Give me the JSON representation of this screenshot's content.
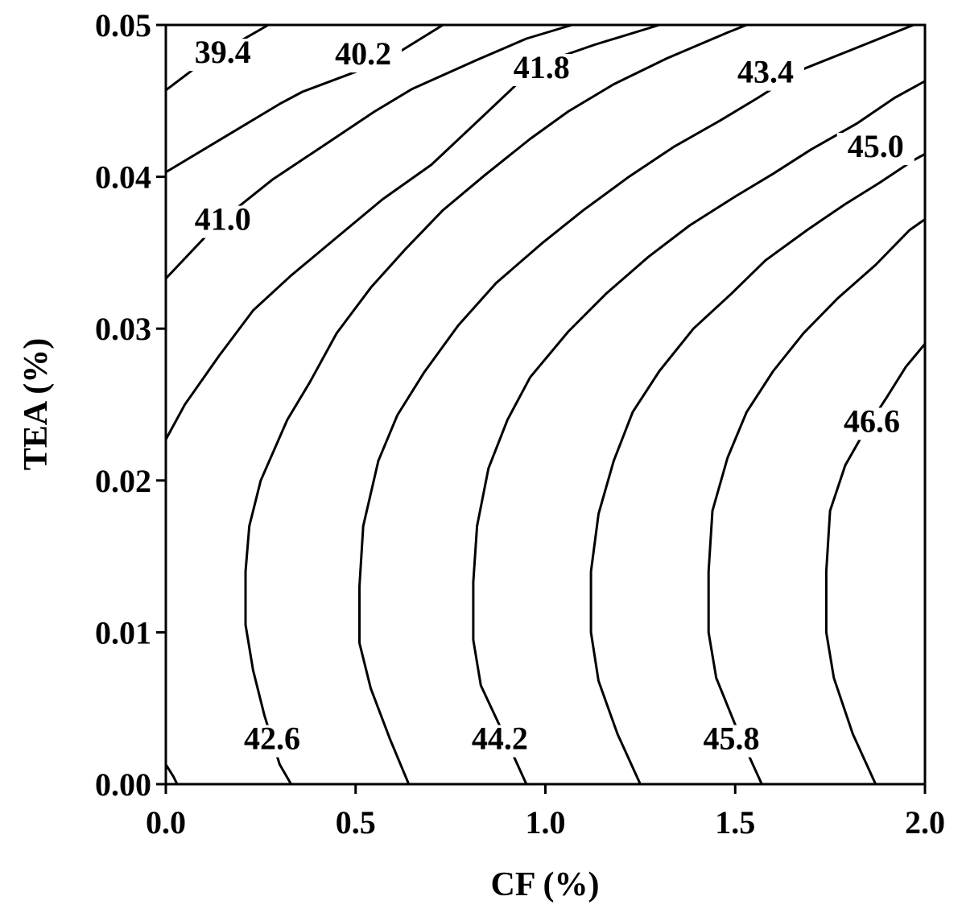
{
  "chart_data": {
    "type": "contour",
    "xlabel": "CF (%)",
    "ylabel": "TEA (%)",
    "xlim": [
      0.0,
      2.0
    ],
    "ylim": [
      0.0,
      0.05
    ],
    "xticks": [
      "0.0",
      "0.5",
      "1.0",
      "1.5",
      "2.0"
    ],
    "yticks": [
      "0.00",
      "0.01",
      "0.02",
      "0.03",
      "0.04",
      "0.05"
    ],
    "contours": [
      {
        "level": "39.4",
        "label_at": [
          0.15,
          0.0475
        ],
        "points": [
          [
            0.0,
            0.0457
          ],
          [
            0.1,
            0.0476
          ],
          [
            0.2,
            0.049
          ],
          [
            0.27,
            0.05
          ]
        ]
      },
      {
        "level": "40.2",
        "label_at": [
          0.52,
          0.0474
        ],
        "points": [
          [
            0.0,
            0.0403
          ],
          [
            0.16,
            0.0427
          ],
          [
            0.3,
            0.0448
          ],
          [
            0.36,
            0.0456
          ],
          [
            0.52,
            0.0471
          ],
          [
            0.62,
            0.0483
          ],
          [
            0.73,
            0.05
          ]
        ]
      },
      {
        "level": "41.0",
        "label_at": [
          0.15,
          0.0365
        ],
        "points": [
          [
            0.0,
            0.0333
          ],
          [
            0.14,
            0.037
          ],
          [
            0.28,
            0.0398
          ],
          [
            0.4,
            0.0418
          ],
          [
            0.55,
            0.0443
          ],
          [
            0.65,
            0.0458
          ],
          [
            0.82,
            0.0477
          ],
          [
            0.95,
            0.0491
          ],
          [
            1.07,
            0.05
          ]
        ]
      },
      {
        "level": "41.8",
        "label_at": [
          0.99,
          0.0465
        ],
        "points": [
          [
            0.0,
            0.0227
          ],
          [
            0.05,
            0.025
          ],
          [
            0.14,
            0.0282
          ],
          [
            0.23,
            0.0312
          ],
          [
            0.33,
            0.0335
          ],
          [
            0.45,
            0.036
          ],
          [
            0.57,
            0.0385
          ],
          [
            0.7,
            0.0408
          ],
          [
            0.84,
            0.0441
          ],
          [
            0.98,
            0.0474
          ],
          [
            1.13,
            0.0487
          ],
          [
            1.3,
            0.05
          ]
        ]
      },
      {
        "level": "42.6",
        "label_at": [
          0.28,
          0.0023
        ],
        "points": [
          [
            0.0,
            0.0013
          ],
          [
            0.02,
            0.0005
          ],
          [
            0.03,
            0.0
          ],
          [
            0.03,
            0.0
          ],
          [
            0.33,
            0.0
          ],
          [
            0.3,
            0.0013
          ],
          [
            0.26,
            0.0045
          ],
          [
            0.23,
            0.0075
          ],
          [
            0.21,
            0.0105
          ],
          [
            0.21,
            0.014
          ],
          [
            0.22,
            0.017
          ],
          [
            0.25,
            0.02
          ],
          [
            0.32,
            0.024
          ],
          [
            0.38,
            0.0265
          ],
          [
            0.45,
            0.0297
          ],
          [
            0.54,
            0.0327
          ],
          [
            0.63,
            0.0352
          ],
          [
            0.73,
            0.0378
          ],
          [
            0.84,
            0.0401
          ],
          [
            0.96,
            0.0425
          ],
          [
            1.06,
            0.0443
          ],
          [
            1.18,
            0.0461
          ],
          [
            1.32,
            0.0478
          ],
          [
            1.48,
            0.0495
          ],
          [
            1.53,
            0.05
          ]
        ]
      },
      {
        "level": "43.4",
        "label_at": [
          1.58,
          0.0462
        ],
        "points": [
          [
            0.64,
            0.0
          ],
          [
            0.59,
            0.003
          ],
          [
            0.54,
            0.0063
          ],
          [
            0.51,
            0.0093
          ],
          [
            0.51,
            0.013
          ],
          [
            0.52,
            0.017
          ],
          [
            0.56,
            0.0213
          ],
          [
            0.61,
            0.0243
          ],
          [
            0.68,
            0.0271
          ],
          [
            0.77,
            0.0302
          ],
          [
            0.87,
            0.033
          ],
          [
            0.99,
            0.0356
          ],
          [
            1.1,
            0.0378
          ],
          [
            1.22,
            0.04
          ],
          [
            1.34,
            0.042
          ],
          [
            1.46,
            0.0437
          ],
          [
            1.56,
            0.0452
          ],
          [
            1.68,
            0.0471
          ],
          [
            1.8,
            0.0483
          ],
          [
            1.93,
            0.0496
          ],
          [
            1.97,
            0.05
          ]
        ]
      },
      {
        "level": "44.2",
        "label_at": [
          0.88,
          0.0023
        ],
        "points": [
          [
            0.95,
            0.0
          ],
          [
            0.89,
            0.0033
          ],
          [
            0.83,
            0.0065
          ],
          [
            0.81,
            0.0095
          ],
          [
            0.81,
            0.0133
          ],
          [
            0.82,
            0.017
          ],
          [
            0.85,
            0.0208
          ],
          [
            0.9,
            0.024
          ],
          [
            0.96,
            0.0268
          ],
          [
            1.06,
            0.0298
          ],
          [
            1.16,
            0.0323
          ],
          [
            1.27,
            0.0347
          ],
          [
            1.38,
            0.0368
          ],
          [
            1.5,
            0.0387
          ],
          [
            1.6,
            0.0402
          ],
          [
            1.7,
            0.0418
          ],
          [
            1.82,
            0.0435
          ],
          [
            1.92,
            0.0452
          ],
          [
            2.0,
            0.0463
          ]
        ]
      },
      {
        "level": "45.0",
        "label_at": [
          1.87,
          0.0413
        ],
        "points": [
          [
            1.25,
            0.0
          ],
          [
            1.19,
            0.0033
          ],
          [
            1.14,
            0.0068
          ],
          [
            1.12,
            0.01
          ],
          [
            1.12,
            0.014
          ],
          [
            1.14,
            0.0178
          ],
          [
            1.18,
            0.0213
          ],
          [
            1.23,
            0.0245
          ],
          [
            1.3,
            0.0272
          ],
          [
            1.39,
            0.03
          ],
          [
            1.49,
            0.0323
          ],
          [
            1.58,
            0.0345
          ],
          [
            1.69,
            0.0365
          ],
          [
            1.79,
            0.0382
          ],
          [
            1.88,
            0.0396
          ],
          [
            1.97,
            0.0411
          ],
          [
            2.0,
            0.0415
          ]
        ]
      },
      {
        "level": "45.8",
        "label_at": [
          1.49,
          0.0023
        ],
        "points": [
          [
            1.57,
            0.0
          ],
          [
            1.51,
            0.0033
          ],
          [
            1.45,
            0.007
          ],
          [
            1.43,
            0.01
          ],
          [
            1.43,
            0.014
          ],
          [
            1.44,
            0.018
          ],
          [
            1.48,
            0.0215
          ],
          [
            1.53,
            0.0245
          ],
          [
            1.6,
            0.0272
          ],
          [
            1.68,
            0.0297
          ],
          [
            1.77,
            0.032
          ],
          [
            1.87,
            0.0342
          ],
          [
            1.96,
            0.0365
          ],
          [
            2.0,
            0.0372
          ]
        ]
      },
      {
        "level": "46.6",
        "label_at": [
          1.86,
          0.0232
        ],
        "points": [
          [
            1.87,
            0.0
          ],
          [
            1.81,
            0.0033
          ],
          [
            1.76,
            0.007
          ],
          [
            1.74,
            0.01
          ],
          [
            1.74,
            0.014
          ],
          [
            1.75,
            0.018
          ],
          [
            1.79,
            0.021
          ],
          [
            1.84,
            0.0232
          ],
          [
            1.9,
            0.0255
          ],
          [
            1.95,
            0.0275
          ],
          [
            2.0,
            0.029
          ]
        ]
      }
    ]
  }
}
